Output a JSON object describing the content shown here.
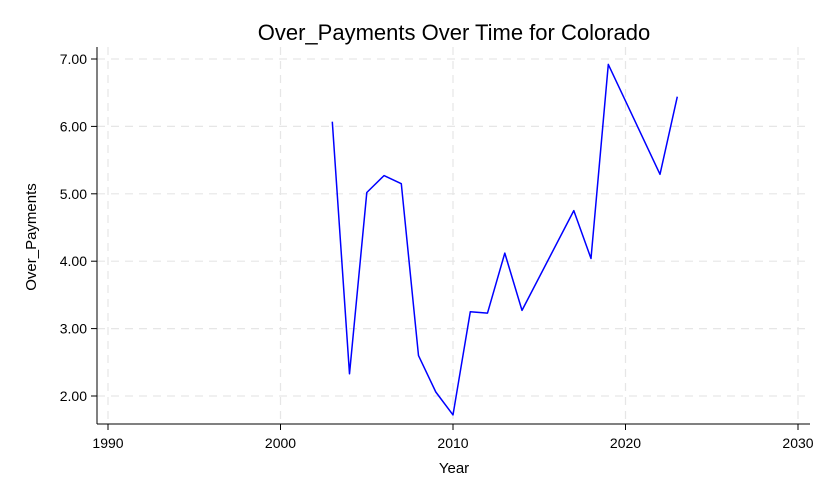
{
  "chart_data": {
    "type": "line",
    "title": "Over_Payments Over Time for Colorado",
    "xlabel": "Year",
    "ylabel": "Over_Payments",
    "xlim": [
      1990,
      2030
    ],
    "ylim": [
      1.55,
      7.15
    ],
    "x_ticks": [
      1990,
      2000,
      2010,
      2020,
      2030
    ],
    "y_ticks": [
      2,
      3,
      4,
      5,
      6,
      7
    ],
    "y_tick_labels": [
      "2.00",
      "3.00",
      "4.00",
      "5.00",
      "6.00",
      "7.00"
    ],
    "grid": true,
    "series": [
      {
        "color": "#0000ff",
        "x": [
          2003,
          2004,
          2005,
          2006,
          2007,
          2008,
          2009,
          2010,
          2011,
          2012,
          2013,
          2014,
          2017,
          2018,
          2019,
          2022,
          2023
        ],
        "y": [
          6.07,
          2.33,
          5.02,
          5.27,
          5.15,
          2.6,
          2.06,
          1.72,
          3.25,
          3.23,
          4.12,
          3.27,
          4.75,
          4.04,
          6.92,
          5.29,
          6.44
        ]
      }
    ]
  }
}
